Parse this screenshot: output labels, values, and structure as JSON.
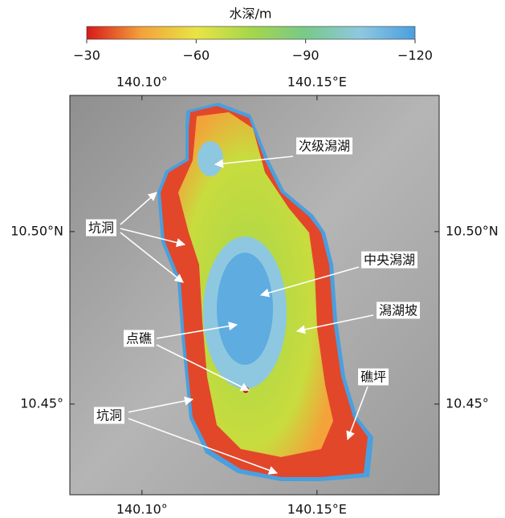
{
  "colorbar": {
    "title": "水深/m",
    "range": [
      -30,
      -120
    ],
    "colors": [
      "#d7191c",
      "#f4a23a",
      "#e8e445",
      "#a6d64a",
      "#78c98a",
      "#8ec8e0",
      "#4a9fdf"
    ],
    "ticks": [
      {
        "value": -30,
        "label": "−30"
      },
      {
        "value": -60,
        "label": "−60"
      },
      {
        "value": -90,
        "label": "−90"
      },
      {
        "value": -120,
        "label": "−120"
      }
    ]
  },
  "map": {
    "lon_range": [
      140.0794,
      140.1849
    ],
    "lat_range": [
      10.5395,
      10.4237
    ],
    "lon_ticks": [
      {
        "value": 140.1,
        "label": "140.10°"
      },
      {
        "value": 140.15,
        "label": "140.15°E"
      }
    ],
    "lat_ticks": [
      {
        "value": 10.5,
        "label": "10.50°N"
      },
      {
        "value": 10.45,
        "label": "10.45°"
      }
    ]
  },
  "annotations": [
    "次级潟湖",
    "坑洞",
    "中央潟湖",
    "潟湖坡",
    "点礁",
    "礁坪",
    "坑洞"
  ]
}
